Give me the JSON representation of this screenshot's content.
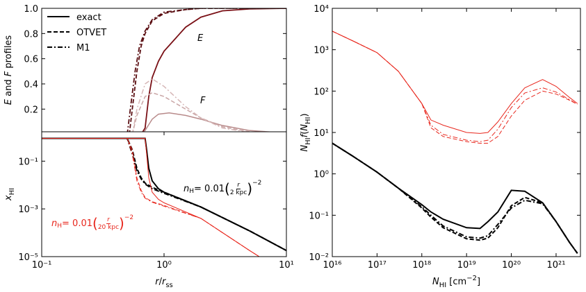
{
  "chart_data": [
    {
      "type": "line",
      "xlog": true,
      "ylog": false,
      "xlim": [
        0.1,
        10
      ],
      "ylim": [
        0.02,
        1
      ],
      "yticks": [
        0.2,
        0.4,
        0.6,
        0.8,
        {
          "value": 1,
          "label": "1.0"
        }
      ],
      "ylabel": [
        {
          "text": "E",
          "style": "italic"
        },
        {
          "text": " and "
        },
        {
          "text": "F",
          "style": "italic"
        },
        {
          "text": " profiles"
        }
      ],
      "legend": [
        {
          "name": "exact",
          "dash": "solid",
          "color": "#000000"
        },
        {
          "name": "OTVET",
          "dash": "dashed",
          "color": "#000000"
        },
        {
          "name": "M1",
          "dash": "dashdot",
          "color": "#000000"
        }
      ],
      "series": [
        {
          "color": "#7a1016",
          "dash": "solid",
          "linewidth": 1.8,
          "x": [
            0.65,
            0.7,
            0.75,
            0.8,
            0.9,
            1,
            1.5,
            2,
            3,
            5,
            10
          ],
          "values": [
            0,
            0.05,
            0.3,
            0.45,
            0.58,
            0.66,
            0.85,
            0.93,
            0.98,
            0.995,
            1.0
          ]
        },
        {
          "color": "#5a0e12",
          "dash": "dashed",
          "linewidth": 1.8,
          "x": [
            0.52,
            0.55,
            0.6,
            0.65,
            0.7,
            0.8,
            1,
            1.5,
            2,
            3,
            10
          ],
          "values": [
            0,
            0.2,
            0.5,
            0.7,
            0.8,
            0.9,
            0.96,
            0.99,
            1.0,
            1.0,
            1.0
          ]
        },
        {
          "color": "#5a0e12",
          "dash": "dashdot",
          "linewidth": 1.8,
          "x": [
            0.5,
            0.53,
            0.58,
            0.63,
            0.7,
            0.8,
            1,
            1.5,
            2,
            3,
            10
          ],
          "values": [
            0,
            0.2,
            0.5,
            0.7,
            0.82,
            0.91,
            0.97,
            0.99,
            1.0,
            1.0,
            1.0
          ]
        },
        {
          "color": "#b88a8a",
          "dash": "solid",
          "linewidth": 1.5,
          "x": [
            0.65,
            0.7,
            0.8,
            0.9,
            1.1,
            1.5,
            2,
            3,
            5,
            10
          ],
          "values": [
            0,
            0.03,
            0.12,
            0.16,
            0.17,
            0.15,
            0.12,
            0.07,
            0.03,
            0.01
          ]
        },
        {
          "color": "#c9a5a5",
          "dash": "dashed",
          "linewidth": 1.5,
          "x": [
            0.55,
            0.6,
            0.7,
            0.8,
            1,
            1.5,
            2,
            3,
            5,
            10
          ],
          "values": [
            0,
            0.15,
            0.3,
            0.33,
            0.3,
            0.2,
            0.13,
            0.06,
            0.02,
            0.005
          ]
        },
        {
          "color": "#d6b6b6",
          "dash": "dashdot",
          "linewidth": 1.5,
          "x": [
            0.55,
            0.6,
            0.7,
            0.8,
            1,
            1.5,
            2,
            3,
            5,
            10
          ],
          "values": [
            0,
            0.2,
            0.4,
            0.44,
            0.38,
            0.22,
            0.13,
            0.05,
            0.015,
            0.005
          ]
        }
      ],
      "annotations": [
        {
          "color": "#000000",
          "parts": [
            {
              "text": "E",
              "style": "italic"
            }
          ]
        },
        {
          "color": "#000000",
          "parts": [
            {
              "text": "F",
              "style": "italic"
            }
          ]
        }
      ]
    },
    {
      "type": "line",
      "xlog": true,
      "ylog": true,
      "xlim": [
        0.1,
        10
      ],
      "ylim": [
        1e-05,
        1.7
      ],
      "xticks": [
        {
          "value": 0.1,
          "label": "10⁻¹"
        },
        {
          "value": 1,
          "label": "10⁰"
        },
        {
          "value": 10,
          "label": "10¹"
        }
      ],
      "yticks": [
        {
          "value": 0.1,
          "label": "10⁻¹"
        },
        {
          "value": 0.001,
          "label": "10⁻³"
        },
        {
          "value": 1e-05,
          "label": "10⁻⁵"
        }
      ],
      "xlabel": [
        {
          "text": "r",
          "style": "italic"
        },
        {
          "text": "/"
        },
        {
          "text": "r",
          "style": "italic"
        },
        {
          "text": "ss",
          "style": "sub"
        }
      ],
      "ylabel": [
        {
          "text": "x",
          "style": "italic"
        },
        {
          "text": "HI",
          "style": "sub"
        }
      ],
      "series": [
        {
          "color": "#000000",
          "dash": "solid",
          "linewidth": 2,
          "x": [
            0.1,
            0.7,
            0.72,
            0.75,
            0.8,
            0.9,
            1,
            2,
            5,
            10
          ],
          "values": [
            0.9,
            0.9,
            0.3,
            0.05,
            0.015,
            0.007,
            0.005,
            0.0012,
            0.00012,
            1.8e-05
          ]
        },
        {
          "color": "#000000",
          "dash": "dashed",
          "linewidth": 2,
          "x": [
            0.1,
            0.5,
            0.55,
            0.6,
            0.65,
            0.7,
            0.8,
            1,
            2,
            5,
            10
          ],
          "values": [
            0.9,
            0.9,
            0.3,
            0.05,
            0.02,
            0.012,
            0.008,
            0.005,
            0.0012,
            0.00012,
            1.8e-05
          ]
        },
        {
          "color": "#000000",
          "dash": "dashdot",
          "linewidth": 2,
          "x": [
            0.1,
            0.5,
            0.55,
            0.6,
            0.65,
            0.7,
            0.8,
            1,
            2,
            5,
            10
          ],
          "values": [
            0.9,
            0.9,
            0.2,
            0.04,
            0.018,
            0.011,
            0.007,
            0.0045,
            0.0012,
            0.00012,
            1.8e-05
          ]
        },
        {
          "color": "#e8261c",
          "dash": "solid",
          "linewidth": 1,
          "x": [
            0.1,
            0.7,
            0.72,
            0.75,
            0.8,
            0.9,
            1,
            2,
            5,
            6
          ],
          "values": [
            0.9,
            0.9,
            0.2,
            0.02,
            0.005,
            0.0025,
            0.0018,
            0.0004,
            1.8e-05,
            1e-05
          ]
        },
        {
          "color": "#e8261c",
          "dash": "dashed",
          "linewidth": 1,
          "x": [
            0.1,
            0.5,
            0.55,
            0.6,
            0.65,
            0.7,
            0.8,
            1,
            2,
            5,
            6
          ],
          "values": [
            0.9,
            0.9,
            0.3,
            0.02,
            0.006,
            0.003,
            0.002,
            0.0014,
            0.0004,
            1.8e-05,
            1e-05
          ]
        },
        {
          "color": "#e8261c",
          "dash": "dashdot",
          "linewidth": 1,
          "x": [
            0.1,
            0.5,
            0.55,
            0.6,
            0.65,
            0.7,
            0.8,
            1,
            2,
            5,
            6
          ],
          "values": [
            0.9,
            0.9,
            0.2,
            0.015,
            0.005,
            0.0028,
            0.0019,
            0.0013,
            0.0004,
            1.8e-05,
            1e-05
          ]
        }
      ],
      "annotations": [
        {
          "color": "#000000",
          "parts": [
            {
              "text": "n",
              "style": "italic"
            },
            {
              "text": "H",
              "style": "sub"
            },
            {
              "text": " = 0.01"
            },
            {
              "text": "(",
              "style": "paren"
            },
            {
              "text": "r",
              "style": "num"
            },
            {
              "text": "2 kpc",
              "style": "den"
            },
            {
              "text": ")",
              "style": "paren"
            },
            {
              "text": "−2",
              "style": "sup"
            }
          ]
        },
        {
          "color": "#e8261c",
          "parts": [
            {
              "text": "n",
              "style": "italic"
            },
            {
              "text": "H",
              "style": "sub"
            },
            {
              "text": " = 0.01"
            },
            {
              "text": "(",
              "style": "paren"
            },
            {
              "text": "r",
              "style": "num"
            },
            {
              "text": "20 kpc",
              "style": "den"
            },
            {
              "text": ")",
              "style": "paren"
            },
            {
              "text": "−2",
              "style": "sup"
            }
          ]
        }
      ]
    },
    {
      "type": "line",
      "xlog": true,
      "ylog": true,
      "xlim": [
        1e+16,
        3.5e+21
      ],
      "ylim": [
        0.01,
        10000
      ],
      "xticks": [
        {
          "value": 1e+16,
          "label": "10¹⁶"
        },
        {
          "value": 1e+17,
          "label": "10¹⁷"
        },
        {
          "value": 1e+18,
          "label": "10¹⁸"
        },
        {
          "value": 1e+19,
          "label": "10¹⁹"
        },
        {
          "value": 1e+20,
          "label": "10²⁰"
        },
        {
          "value": 1e+21,
          "label": "10²¹"
        }
      ],
      "yticks": [
        {
          "value": 0.01,
          "label": "10⁻²"
        },
        {
          "value": 0.1,
          "label": "10⁻¹"
        },
        {
          "value": 1,
          "label": "10⁰"
        },
        {
          "value": 10,
          "label": "10¹"
        },
        {
          "value": 100,
          "label": "10²"
        },
        {
          "value": 1000,
          "label": "10³"
        },
        {
          "value": 10000,
          "label": "10⁴"
        }
      ],
      "xlabel": [
        {
          "text": "N",
          "style": "italic"
        },
        {
          "text": "HI",
          "style": "sub"
        },
        {
          "text": " [cm"
        },
        {
          "text": "−2",
          "style": "sup"
        },
        {
          "text": "]"
        }
      ],
      "ylabel": [
        {
          "text": "N",
          "style": "italic"
        },
        {
          "text": "HI",
          "style": "sub"
        },
        {
          "text": "f",
          "style": "italic"
        },
        {
          "text": "("
        },
        {
          "text": "N",
          "style": "italic"
        },
        {
          "text": "HI",
          "style": "sub"
        },
        {
          "text": ")"
        }
      ],
      "series": [
        {
          "color": "#e8261c",
          "dash": "solid",
          "linewidth": 1,
          "x": [
            1e+16,
            3e+16,
            1e+17,
            3e+17,
            1e+18,
            1.6e+18,
            3e+18,
            1e+19,
            2e+19,
            3e+19,
            5e+19,
            1e+20,
            2e+20,
            5e+20,
            1e+21,
            2e+21,
            3e+21
          ],
          "values": [
            2800,
            1600,
            850,
            300,
            50,
            20,
            15,
            10,
            9.5,
            10,
            18,
            50,
            120,
            190,
            130,
            70,
            50
          ]
        },
        {
          "color": "#e8261c",
          "dash": "dashed",
          "linewidth": 1,
          "x": [
            1e+16,
            3e+16,
            1e+17,
            3e+17,
            1e+18,
            1.6e+18,
            3e+18,
            1e+19,
            2e+19,
            3e+19,
            5e+19,
            1e+20,
            2e+20,
            5e+20,
            1e+21,
            2e+21,
            3e+21
          ],
          "values": [
            2800,
            1600,
            850,
            300,
            50,
            13,
            8,
            6,
            5.5,
            5.5,
            8,
            25,
            60,
            100,
            85,
            60,
            48
          ]
        },
        {
          "color": "#e8261c",
          "dash": "dashdot",
          "linewidth": 1,
          "x": [
            1e+16,
            3e+16,
            1e+17,
            3e+17,
            1e+18,
            1.6e+18,
            3e+18,
            1e+19,
            2e+19,
            3e+19,
            5e+19,
            1e+20,
            2e+20,
            5e+20,
            1e+21,
            2e+21,
            3e+21
          ],
          "values": [
            2800,
            1600,
            850,
            300,
            50,
            15,
            9,
            6.5,
            6,
            6.5,
            12,
            40,
            90,
            120,
            95,
            62,
            48
          ]
        },
        {
          "color": "#000000",
          "dash": "solid",
          "linewidth": 2,
          "x": [
            1e+16,
            3e+16,
            1e+17,
            3e+17,
            1e+18,
            1.6e+18,
            3e+18,
            1e+19,
            2e+19,
            3e+19,
            5e+19,
            1e+20,
            2e+20,
            5e+20,
            1e+21,
            2e+21,
            3e+21
          ],
          "values": [
            5.5,
            2.6,
            1.1,
            0.45,
            0.18,
            0.12,
            0.08,
            0.05,
            0.048,
            0.07,
            0.12,
            0.4,
            0.38,
            0.2,
            0.07,
            0.022,
            0.012
          ]
        },
        {
          "color": "#000000",
          "dash": "dashed",
          "linewidth": 2,
          "x": [
            1e+16,
            3e+16,
            1e+17,
            3e+17,
            1e+18,
            1.6e+18,
            3e+18,
            1e+19,
            2e+19,
            3e+19,
            5e+19,
            1e+20,
            2e+20,
            5e+20,
            1e+21,
            2e+21,
            3e+21
          ],
          "values": [
            5.5,
            2.6,
            1.1,
            0.45,
            0.15,
            0.09,
            0.05,
            0.027,
            0.025,
            0.028,
            0.05,
            0.17,
            0.27,
            0.2,
            0.07,
            0.022,
            0.012
          ]
        },
        {
          "color": "#000000",
          "dash": "dashdot",
          "linewidth": 2,
          "x": [
            1e+16,
            3e+16,
            1e+17,
            3e+17,
            1e+18,
            1.6e+18,
            3e+18,
            1e+19,
            2e+19,
            3e+19,
            5e+19,
            1e+20,
            2e+20,
            5e+20,
            1e+21,
            2e+21,
            3e+21
          ],
          "values": [
            5.5,
            2.6,
            1.1,
            0.45,
            0.16,
            0.1,
            0.055,
            0.03,
            0.028,
            0.032,
            0.06,
            0.15,
            0.23,
            0.19,
            0.07,
            0.022,
            0.012
          ]
        }
      ]
    }
  ]
}
